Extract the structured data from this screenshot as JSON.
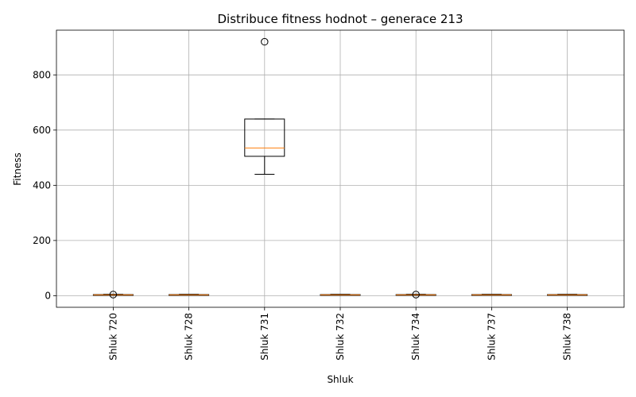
{
  "chart_data": {
    "type": "boxplot",
    "title": "Distribuce fitness hodnot – generace 213",
    "xlabel": "Shluk",
    "ylabel": "Fitness",
    "ylim": [
      -42,
      962
    ],
    "yticks": [
      0,
      200,
      400,
      600,
      800
    ],
    "grid": true,
    "categories": [
      "Shluk 720",
      "Shluk 728",
      "Shluk 731",
      "Shluk 732",
      "Shluk 734",
      "Shluk 737",
      "Shluk 738"
    ],
    "boxes": [
      {
        "whisker_low": 1,
        "q1": 2,
        "median": 3,
        "q3": 4,
        "whisker_high": 5,
        "outliers": [
          4
        ]
      },
      {
        "whisker_low": 1,
        "q1": 2,
        "median": 3,
        "q3": 4,
        "whisker_high": 5,
        "outliers": []
      },
      {
        "whisker_low": 440,
        "q1": 505,
        "median": 535,
        "q3": 640,
        "whisker_high": 640,
        "outliers": [
          920
        ]
      },
      {
        "whisker_low": 1,
        "q1": 2,
        "median": 3,
        "q3": 4,
        "whisker_high": 5,
        "outliers": []
      },
      {
        "whisker_low": 1,
        "q1": 2,
        "median": 3,
        "q3": 4,
        "whisker_high": 5,
        "outliers": [
          4
        ]
      },
      {
        "whisker_low": 1,
        "q1": 2,
        "median": 3,
        "q3": 4,
        "whisker_high": 5,
        "outliers": []
      },
      {
        "whisker_low": 1,
        "q1": 2,
        "median": 3,
        "q3": 4,
        "whisker_high": 5,
        "outliers": []
      }
    ],
    "colors": {
      "box": "#000000",
      "median": "#ff7f0e",
      "grid": "#b0b0b0"
    }
  }
}
